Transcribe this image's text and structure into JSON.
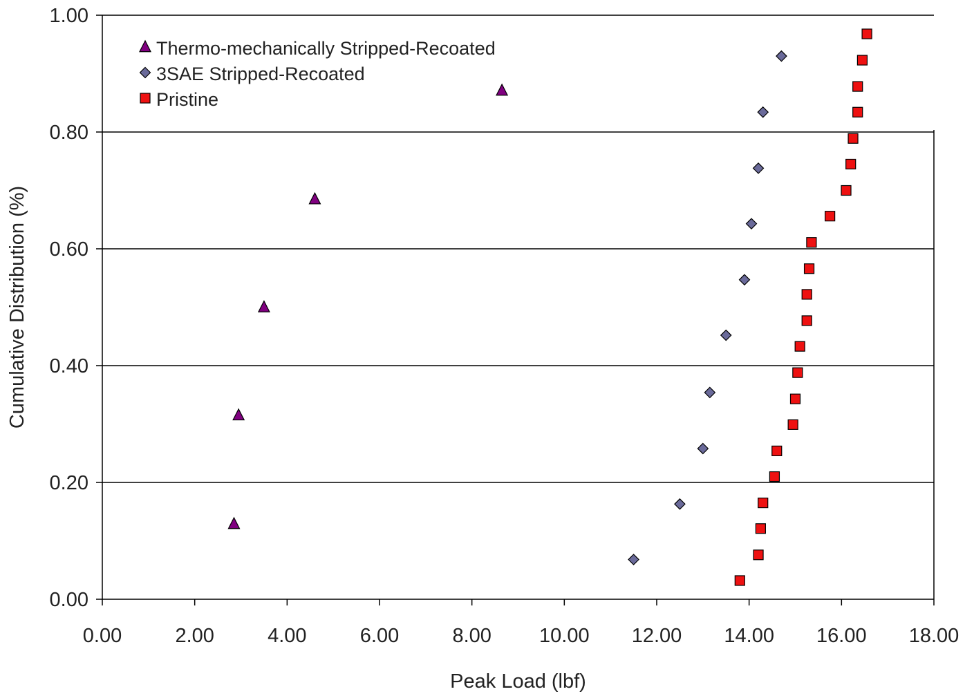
{
  "chart_data": {
    "type": "scatter",
    "title": "",
    "xlabel": "Peak Load (lbf)",
    "ylabel": "Cumulative Distribution (%)",
    "xlim": [
      0,
      18
    ],
    "ylim": [
      0,
      1
    ],
    "xticks": [
      "0.00",
      "2.00",
      "4.00",
      "6.00",
      "8.00",
      "10.00",
      "12.00",
      "14.00",
      "16.00",
      "18.00"
    ],
    "yticks": [
      "0.00",
      "0.20",
      "0.40",
      "0.60",
      "0.80",
      "1.00"
    ],
    "grid": "horizontal",
    "legend_position": "top-left",
    "series": [
      {
        "name": "Thermo-mechanically Stripped-Recoated",
        "marker": "triangle",
        "color": "#800080",
        "points": [
          {
            "x": 2.85,
            "y": 0.129
          },
          {
            "x": 2.95,
            "y": 0.315
          },
          {
            "x": 3.5,
            "y": 0.5
          },
          {
            "x": 4.6,
            "y": 0.685
          },
          {
            "x": 8.65,
            "y": 0.871
          }
        ]
      },
      {
        "name": "3SAE Stripped-Recoated",
        "marker": "diamond",
        "color": "#6a6a9a",
        "points": [
          {
            "x": 11.5,
            "y": 0.068
          },
          {
            "x": 12.5,
            "y": 0.163
          },
          {
            "x": 13.0,
            "y": 0.258
          },
          {
            "x": 13.15,
            "y": 0.354
          },
          {
            "x": 13.5,
            "y": 0.452
          },
          {
            "x": 13.9,
            "y": 0.547
          },
          {
            "x": 14.05,
            "y": 0.643
          },
          {
            "x": 14.2,
            "y": 0.738
          },
          {
            "x": 14.3,
            "y": 0.834
          },
          {
            "x": 14.7,
            "y": 0.93
          }
        ]
      },
      {
        "name": "Pristine",
        "marker": "square",
        "color": "#ee1111",
        "points": [
          {
            "x": 13.8,
            "y": 0.032
          },
          {
            "x": 14.2,
            "y": 0.076
          },
          {
            "x": 14.25,
            "y": 0.121
          },
          {
            "x": 14.3,
            "y": 0.165
          },
          {
            "x": 14.55,
            "y": 0.21
          },
          {
            "x": 14.6,
            "y": 0.254
          },
          {
            "x": 14.95,
            "y": 0.299
          },
          {
            "x": 15.0,
            "y": 0.343
          },
          {
            "x": 15.05,
            "y": 0.388
          },
          {
            "x": 15.1,
            "y": 0.433
          },
          {
            "x": 15.25,
            "y": 0.477
          },
          {
            "x": 15.25,
            "y": 0.522
          },
          {
            "x": 15.3,
            "y": 0.566
          },
          {
            "x": 15.35,
            "y": 0.611
          },
          {
            "x": 15.75,
            "y": 0.656
          },
          {
            "x": 16.1,
            "y": 0.7
          },
          {
            "x": 16.2,
            "y": 0.745
          },
          {
            "x": 16.25,
            "y": 0.789
          },
          {
            "x": 16.35,
            "y": 0.834
          },
          {
            "x": 16.35,
            "y": 0.878
          },
          {
            "x": 16.45,
            "y": 0.923
          },
          {
            "x": 16.55,
            "y": 0.968
          }
        ]
      }
    ]
  }
}
